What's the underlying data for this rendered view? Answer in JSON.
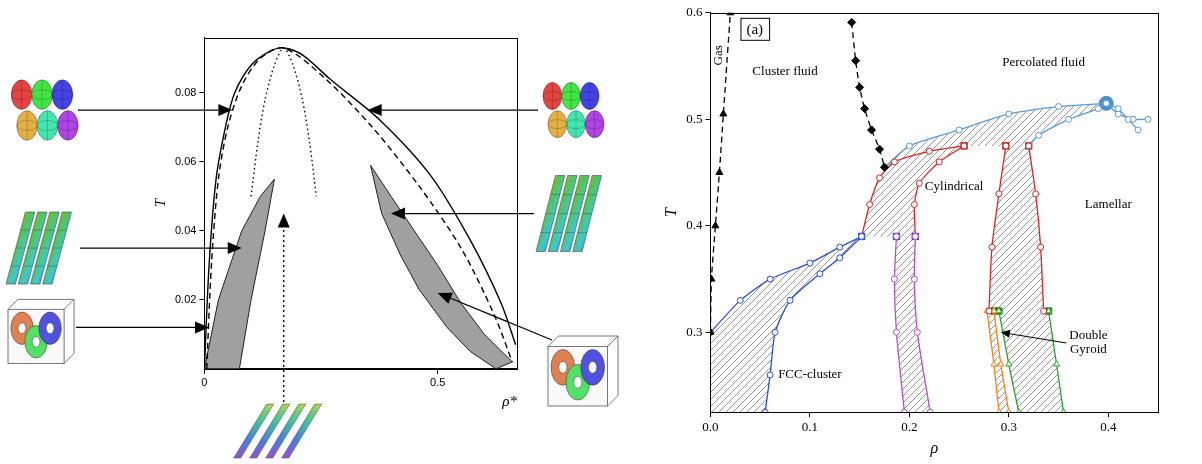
{
  "chart_data": [
    {
      "type": "line",
      "x_label": "ρ*",
      "y_label": "T",
      "xlim": [
        0,
        0.67
      ],
      "ylim": [
        0,
        0.096
      ],
      "xticks": [
        0,
        0.5
      ],
      "yticks": [
        0.02,
        0.04,
        0.06,
        0.08
      ],
      "grid": false,
      "series": [
        {
          "color": "#000000",
          "line_style": "solid",
          "marker": "none",
          "x": [
            0,
            0.01,
            0.025,
            0.045,
            0.065,
            0.1,
            0.14,
            0.17,
            0.21,
            0.269,
            0.377,
            0.485,
            0.571,
            0.636,
            0.667
          ],
          "values": [
            0,
            0.03,
            0.055,
            0.07,
            0.08,
            0.088,
            0.092,
            0.093,
            0.091,
            0.084,
            0.072,
            0.056,
            0.037,
            0.019,
            0.007
          ]
        },
        {
          "color": "#000000",
          "line_style": "dashed",
          "marker": "none",
          "x": [
            0.005,
            0.015,
            0.03,
            0.05,
            0.08,
            0.12,
            0.17,
            0.26,
            0.36,
            0.46,
            0.55,
            0.62,
            0.66
          ],
          "values": [
            0,
            0.03,
            0.055,
            0.07,
            0.082,
            0.09,
            0.093,
            0.084,
            0.07,
            0.053,
            0.035,
            0.016,
            0.002
          ]
        },
        {
          "color": "#000000",
          "line_style": "dotted",
          "marker": "none",
          "x": [
            0.1,
            0.115,
            0.13,
            0.15,
            0.17,
            0.19,
            0.21,
            0.225,
            0.24
          ],
          "values": [
            0.05,
            0.066,
            0.078,
            0.088,
            0.093,
            0.088,
            0.078,
            0.066,
            0.05
          ]
        }
      ],
      "regions": [
        {
          "color": "#a0a0a0",
          "line_style": "solid",
          "x": [
            0,
            0.03,
            0.08,
            0.12,
            0.15,
            0.13,
            0.1,
            0.075
          ],
          "values": [
            0,
            0.02,
            0.04,
            0.05,
            0.055,
            0.04,
            0.02,
            0
          ]
        },
        {
          "color": "#a0a0a0",
          "line_style": "solid",
          "x": [
            0.356,
            0.4,
            0.45,
            0.5,
            0.55,
            0.6,
            0.66,
            0.625,
            0.57,
            0.52,
            0.46,
            0.42,
            0.38
          ],
          "values": [
            0.059,
            0.05,
            0.04,
            0.03,
            0.019,
            0.01,
            0.002,
            0,
            0.005,
            0.012,
            0.023,
            0.033,
            0.045
          ]
        }
      ]
    },
    {
      "type": "line",
      "title": "(a)",
      "x_label": "ρ",
      "y_label": "T",
      "xlim": [
        0,
        0.45
      ],
      "ylim": [
        0.225,
        0.6
      ],
      "xticks": [
        {
          "value": 0,
          "label": "0.0"
        },
        0.1,
        0.2,
        0.3,
        0.4
      ],
      "yticks": [
        0.3,
        0.4,
        0.5,
        0.6
      ],
      "grid": false,
      "series": [
        {
          "color": "#000000",
          "line_style": "dashed",
          "marker": "triangle",
          "x": [
            0,
            0.001,
            0.005,
            0.009,
            0.013,
            0.02
          ],
          "values": [
            0.3,
            0.35,
            0.4,
            0.45,
            0.505,
            0.6
          ]
        },
        {
          "color": "#000000",
          "line_style": "dashed",
          "marker": "diamond",
          "x": [
            0.142,
            0.146,
            0.15,
            0.155,
            0.162,
            0.17,
            0.175
          ],
          "values": [
            0.591,
            0.555,
            0.53,
            0.51,
            0.49,
            0.472,
            0.455
          ]
        },
        {
          "color": "#2b4fd6",
          "line_style": "solid",
          "marker": "open_circle",
          "x": [
            0,
            0.03,
            0.06,
            0.1,
            0.13,
            0.152
          ],
          "values": [
            0.3,
            0.33,
            0.35,
            0.365,
            0.38,
            0.39
          ]
        },
        {
          "color": "#2b4fd6",
          "line_style": "solid",
          "marker": "open_circle",
          "x": [
            0.055,
            0.06,
            0.065,
            0.08,
            0.11,
            0.13,
            0.152
          ],
          "values": [
            0.225,
            0.26,
            0.3,
            0.33,
            0.355,
            0.37,
            0.39
          ]
        },
        {
          "color": "#b44fc8",
          "line_style": "solid",
          "marker": "open_circle",
          "x": [
            0.187,
            0.185,
            0.187,
            0.195
          ],
          "values": [
            0.39,
            0.35,
            0.3,
            0.225
          ]
        },
        {
          "color": "#b44fc8",
          "line_style": "solid",
          "marker": "open_circle",
          "x": [
            0.206,
            0.205,
            0.208,
            0.221
          ],
          "values": [
            0.39,
            0.35,
            0.3,
            0.225
          ]
        },
        {
          "color": "#d62728",
          "line_style": "solid",
          "marker": "open_circle",
          "x": [
            0.152,
            0.16,
            0.17,
            0.185,
            0.22,
            0.255
          ],
          "values": [
            0.39,
            0.42,
            0.445,
            0.46,
            0.47,
            0.475
          ]
        },
        {
          "color": "#d62728",
          "line_style": "solid",
          "marker": "open_circle",
          "x": [
            0.206,
            0.205,
            0.21,
            0.23,
            0.255
          ],
          "values": [
            0.39,
            0.42,
            0.44,
            0.46,
            0.475
          ]
        },
        {
          "color": "#d62728",
          "line_style": "solid",
          "marker": "open_circle",
          "x": [
            0.297,
            0.29,
            0.283,
            0.28
          ],
          "values": [
            0.475,
            0.43,
            0.38,
            0.32
          ]
        },
        {
          "color": "#d62728",
          "line_style": "solid",
          "marker": "open_circle",
          "x": [
            0.32,
            0.327,
            0.332,
            0.335
          ],
          "values": [
            0.475,
            0.43,
            0.38,
            0.32
          ]
        },
        {
          "color": "#ff7f0e",
          "line_style": "solid",
          "marker": "open_triangle",
          "x": [
            0.278,
            0.285,
            0.29
          ],
          "values": [
            0.32,
            0.27,
            0.225
          ]
        },
        {
          "color": "#ff7f0e",
          "line_style": "solid",
          "marker": "open_triangle",
          "x": [
            0.285,
            0.292,
            0.3
          ],
          "values": [
            0.32,
            0.27,
            0.225
          ]
        },
        {
          "color": "#2ca02c",
          "line_style": "solid",
          "marker": "open_triangle",
          "x": [
            0.29,
            0.3,
            0.31
          ],
          "values": [
            0.32,
            0.27,
            0.225
          ]
        },
        {
          "color": "#2ca02c",
          "line_style": "solid",
          "marker": "open_triangle",
          "x": [
            0.34,
            0.348,
            0.355
          ],
          "values": [
            0.32,
            0.27,
            0.225
          ]
        },
        {
          "color": "#5b9bd5",
          "line_style": "solid",
          "marker": "open_circle",
          "x": [
            0.175,
            0.2,
            0.25,
            0.3,
            0.35,
            0.398
          ],
          "values": [
            0.455,
            0.475,
            0.49,
            0.505,
            0.512,
            0.515
          ]
        },
        {
          "color": "#5b9bd5",
          "line_style": "solid",
          "marker": "open_circle",
          "x": [
            0.32,
            0.33,
            0.36,
            0.39,
            0.398
          ],
          "values": [
            0.475,
            0.485,
            0.5,
            0.51,
            0.515
          ]
        },
        {
          "color": "#5b9bd5",
          "line_style": "solid",
          "marker": "open_circle",
          "x": [
            0.398,
            0.41,
            0.42,
            0.43
          ],
          "values": [
            0.515,
            0.51,
            0.5,
            0.49
          ]
        },
        {
          "color": "#5b9bd5",
          "line_style": "solid",
          "marker": "open_circle",
          "x": [
            0.398,
            0.41,
            0.425,
            0.44
          ],
          "values": [
            0.515,
            0.505,
            0.5,
            0.5
          ]
        },
        {
          "color": "#1f3fd0",
          "line_style": "none",
          "marker": "square",
          "x": [
            0.152,
            0.187,
            0.206
          ],
          "values": [
            0.39,
            0.39,
            0.39
          ]
        },
        {
          "color": "#c41e1e",
          "line_style": "none",
          "marker": "square",
          "x": [
            0.255,
            0.297,
            0.32
          ],
          "values": [
            0.475,
            0.475,
            0.475
          ]
        },
        {
          "color": "#1f8f1f",
          "line_style": "none",
          "marker": "square",
          "x": [
            0.285,
            0.29,
            0.34
          ],
          "values": [
            0.32,
            0.32,
            0.32
          ]
        },
        {
          "color": "#4a90c8",
          "line_style": "none",
          "marker": "dot",
          "x": [
            0.398
          ],
          "values": [
            0.515
          ]
        }
      ],
      "regions": [
        {
          "color": "#8a8a8a",
          "line_style": "hatched",
          "x": [
            0,
            0.055,
            0.06,
            0.065,
            0.08,
            0.11,
            0.13,
            0.152,
            0.13,
            0.1,
            0.06,
            0.03,
            0
          ],
          "values": [
            0.225,
            0.225,
            0.26,
            0.3,
            0.33,
            0.355,
            0.37,
            0.39,
            0.38,
            0.365,
            0.35,
            0.33,
            0.3
          ]
        },
        {
          "color": "#8a8a8a",
          "line_style": "hatched",
          "x": [
            0.187,
            0.185,
            0.187,
            0.195,
            0.221,
            0.208,
            0.205,
            0.206
          ],
          "values": [
            0.39,
            0.35,
            0.3,
            0.225,
            0.225,
            0.3,
            0.35,
            0.39
          ]
        },
        {
          "color": "#8a8a8a",
          "line_style": "hatched",
          "x": [
            0.152,
            0.16,
            0.17,
            0.185,
            0.22,
            0.255,
            0.23,
            0.21,
            0.205,
            0.206
          ],
          "values": [
            0.39,
            0.42,
            0.445,
            0.46,
            0.47,
            0.475,
            0.46,
            0.44,
            0.42,
            0.39
          ]
        },
        {
          "color": "#8a8a8a",
          "line_style": "hatched",
          "x": [
            0.297,
            0.29,
            0.283,
            0.28,
            0.335,
            0.332,
            0.327,
            0.32
          ],
          "values": [
            0.475,
            0.43,
            0.38,
            0.32,
            0.32,
            0.38,
            0.43,
            0.475
          ]
        },
        {
          "color": "#8a8a8a",
          "line_style": "hatched",
          "x": [
            0.278,
            0.285,
            0.29,
            0.3,
            0.292,
            0.285
          ],
          "values": [
            0.32,
            0.27,
            0.225,
            0.225,
            0.27,
            0.32
          ]
        },
        {
          "color": "#8a8a8a",
          "line_style": "hatched",
          "x": [
            0.29,
            0.3,
            0.31,
            0.355,
            0.348,
            0.34
          ],
          "values": [
            0.32,
            0.27,
            0.225,
            0.225,
            0.27,
            0.32
          ]
        },
        {
          "color": "#8a8a8a",
          "line_style": "hatched",
          "x": [
            0.175,
            0.2,
            0.25,
            0.3,
            0.35,
            0.398,
            0.39,
            0.36,
            0.33,
            0.32,
            0.255,
            0.22,
            0.185
          ],
          "values": [
            0.455,
            0.475,
            0.49,
            0.505,
            0.512,
            0.515,
            0.51,
            0.5,
            0.485,
            0.475,
            0.475,
            0.47,
            0.46
          ]
        }
      ],
      "annotations": [
        {
          "text": "Gas",
          "x": 0.0085,
          "y": 0.56
        },
        {
          "text": "Cluster fluid",
          "x": 0.075,
          "y": 0.545
        },
        {
          "text": "Percolated fluid",
          "x": 0.335,
          "y": 0.553
        },
        {
          "text": "Cylindrical",
          "x": 0.245,
          "y": 0.437
        },
        {
          "text": "Lamellar",
          "x": 0.4,
          "y": 0.42
        },
        {
          "text": "Double Gyroid",
          "x": 0.38,
          "y": 0.29,
          "arrow": [
            0.292,
            0.3
          ]
        },
        {
          "text": "FCC-cluster",
          "x": 0.1,
          "y": 0.26
        }
      ]
    }
  ]
}
